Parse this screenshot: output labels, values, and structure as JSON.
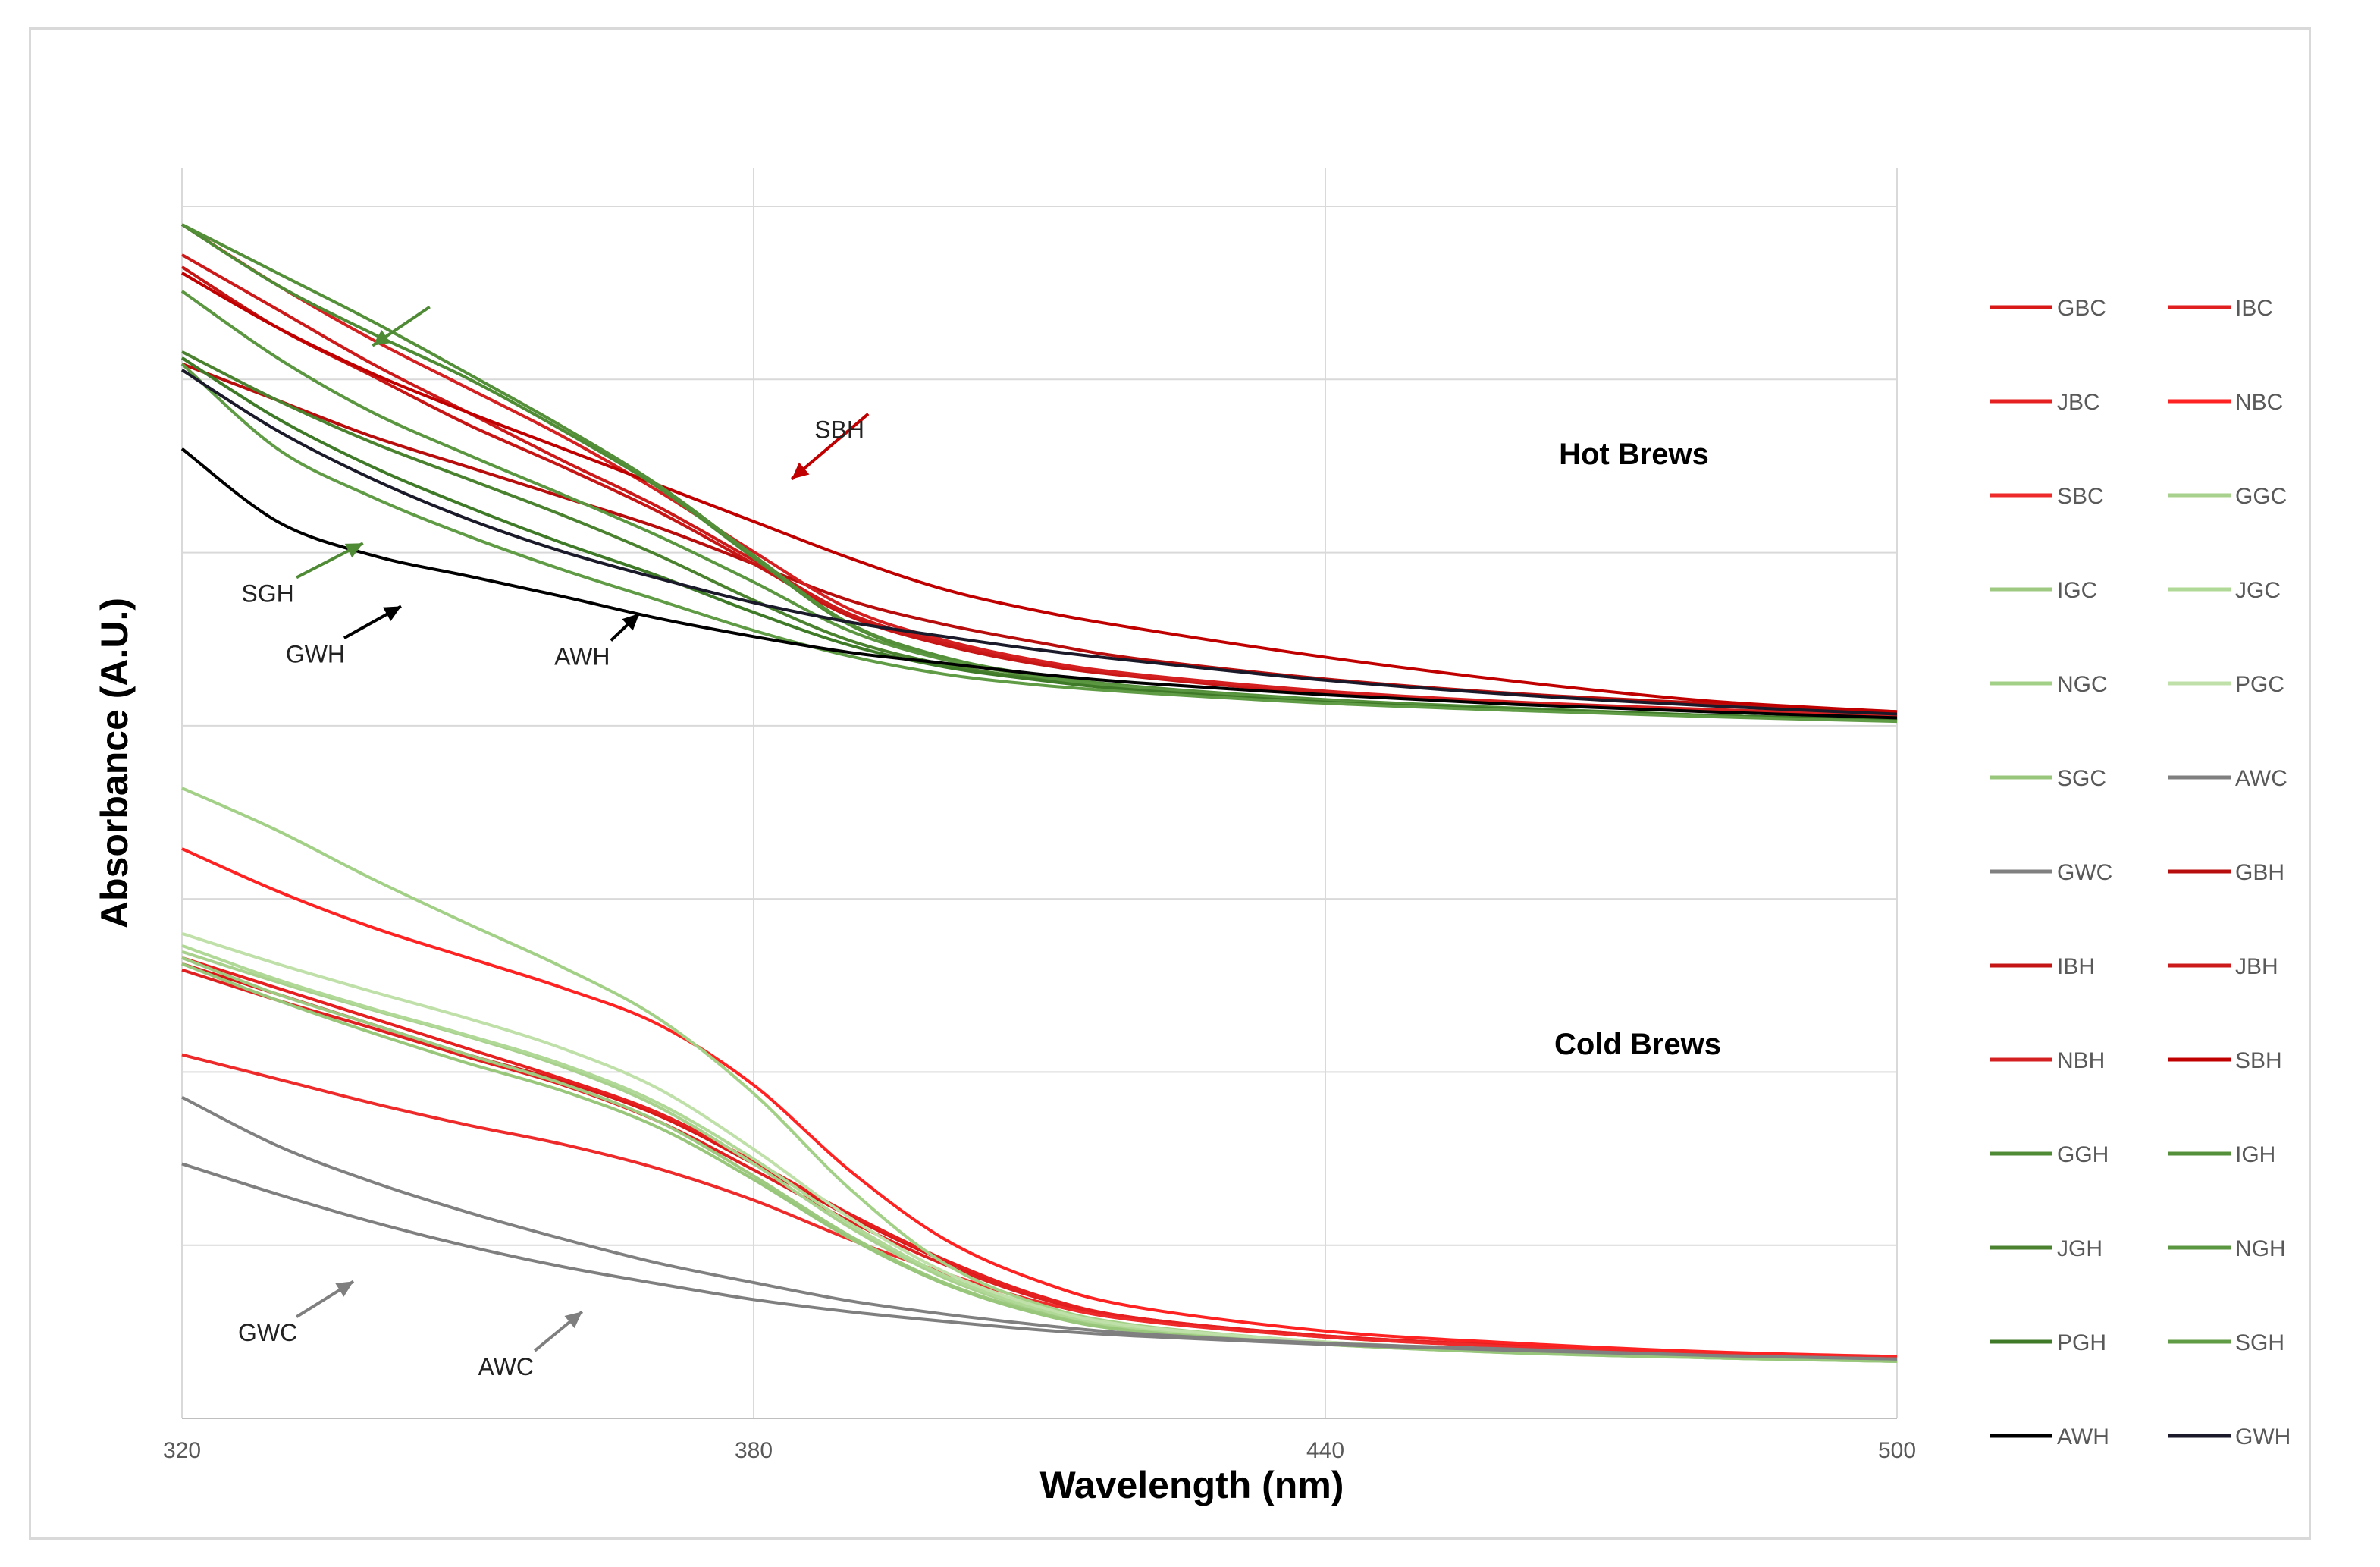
{
  "chart_data": {
    "type": "line",
    "title": "",
    "xlabel": "Wavelength (nm)",
    "ylabel": "Absorbance (A.U.)",
    "xlim": [
      320,
      500
    ],
    "ylim": [
      0,
      1
    ],
    "x_ticks": [
      "320",
      "380",
      "440",
      "500"
    ],
    "y_ticks": "hidden (no numeric labels shown)",
    "grid": true,
    "legend_position": "right",
    "panel_labels": [
      "Hot Brews",
      "Cold Brews"
    ],
    "colors": {
      "black_hot": "#000000",
      "black_cold": "#e02020",
      "green_hot": "#4f8a35",
      "green_cold": "#a6d38a",
      "white_hot": "#000000",
      "white_cold": "#7f7f7f",
      "arrow_red": "#c00000",
      "arrow_green": "#4f8a35",
      "grid": "#d9d9d9"
    },
    "x": [
      320,
      330,
      340,
      350,
      360,
      370,
      380,
      390,
      400,
      410,
      420,
      440,
      460,
      480,
      500
    ],
    "series": [
      {
        "name": "GBC",
        "group": "cold",
        "color": "#d91818",
        "values": [
          0.375,
          0.35,
          0.325,
          0.3,
          0.278,
          0.25,
          0.21,
          0.167,
          0.13,
          0.1,
          0.083,
          0.068,
          0.06,
          0.054,
          0.05
        ]
      },
      {
        "name": "IBC",
        "group": "cold",
        "color": "#e02020",
        "values": [
          0.37,
          0.345,
          0.322,
          0.298,
          0.275,
          0.245,
          0.205,
          0.163,
          0.127,
          0.099,
          0.082,
          0.067,
          0.059,
          0.053,
          0.05
        ]
      },
      {
        "name": "JBC",
        "group": "cold",
        "color": "#e62020",
        "values": [
          0.38,
          0.355,
          0.33,
          0.305,
          0.28,
          0.252,
          0.212,
          0.169,
          0.131,
          0.101,
          0.083,
          0.068,
          0.06,
          0.054,
          0.05
        ]
      },
      {
        "name": "NBC",
        "group": "cold",
        "color": "#ff2222",
        "values": [
          0.47,
          0.435,
          0.405,
          0.38,
          0.355,
          0.325,
          0.275,
          0.205,
          0.148,
          0.113,
          0.092,
          0.072,
          0.062,
          0.055,
          0.051
        ]
      },
      {
        "name": "SBC",
        "group": "cold",
        "color": "#ee2a2a",
        "values": [
          0.3,
          0.28,
          0.26,
          0.242,
          0.226,
          0.206,
          0.18,
          0.148,
          0.12,
          0.096,
          0.081,
          0.067,
          0.059,
          0.053,
          0.05
        ]
      },
      {
        "name": "GGC",
        "group": "cold",
        "color": "#a9d18e",
        "values": [
          0.385,
          0.36,
          0.337,
          0.315,
          0.29,
          0.257,
          0.21,
          0.158,
          0.116,
          0.089,
          0.074,
          0.062,
          0.055,
          0.05,
          0.047
        ]
      },
      {
        "name": "IGC",
        "group": "cold",
        "color": "#9dca80",
        "values": [
          0.38,
          0.35,
          0.325,
          0.3,
          0.276,
          0.245,
          0.2,
          0.151,
          0.112,
          0.087,
          0.072,
          0.061,
          0.054,
          0.05,
          0.047
        ]
      },
      {
        "name": "JGC",
        "group": "cold",
        "color": "#b0d896",
        "values": [
          0.39,
          0.362,
          0.338,
          0.316,
          0.292,
          0.26,
          0.214,
          0.161,
          0.118,
          0.09,
          0.075,
          0.062,
          0.055,
          0.05,
          0.047
        ]
      },
      {
        "name": "NGC",
        "group": "cold",
        "color": "#a3d087",
        "values": [
          0.52,
          0.485,
          0.445,
          0.408,
          0.372,
          0.33,
          0.268,
          0.19,
          0.128,
          0.094,
          0.077,
          0.063,
          0.056,
          0.051,
          0.047
        ]
      },
      {
        "name": "PGC",
        "group": "cold",
        "color": "#bfe0a8",
        "values": [
          0.4,
          0.375,
          0.352,
          0.33,
          0.305,
          0.272,
          0.222,
          0.166,
          0.121,
          0.092,
          0.076,
          0.063,
          0.055,
          0.05,
          0.047
        ]
      },
      {
        "name": "SGC",
        "group": "cold",
        "color": "#98c77b",
        "values": [
          0.375,
          0.345,
          0.318,
          0.293,
          0.27,
          0.24,
          0.197,
          0.149,
          0.111,
          0.086,
          0.072,
          0.061,
          0.054,
          0.05,
          0.047
        ]
      },
      {
        "name": "AWC",
        "group": "cold",
        "color": "#7f7f7f",
        "values": [
          0.21,
          0.185,
          0.162,
          0.142,
          0.125,
          0.111,
          0.098,
          0.088,
          0.08,
          0.073,
          0.068,
          0.061,
          0.056,
          0.052,
          0.049
        ]
      },
      {
        "name": "GWC",
        "group": "cold",
        "color": "#808080",
        "values": [
          0.265,
          0.225,
          0.195,
          0.17,
          0.148,
          0.128,
          0.112,
          0.097,
          0.086,
          0.077,
          0.07,
          0.062,
          0.057,
          0.052,
          0.049
        ]
      },
      {
        "name": "GBH",
        "group": "hot",
        "color": "#b80d0d",
        "values": [
          0.87,
          0.84,
          0.81,
          0.785,
          0.76,
          0.735,
          0.705,
          0.675,
          0.655,
          0.64,
          0.627,
          0.61,
          0.598,
          0.59,
          0.583
        ]
      },
      {
        "name": "IBH",
        "group": "hot",
        "color": "#c61515",
        "values": [
          0.95,
          0.9,
          0.86,
          0.82,
          0.785,
          0.748,
          0.705,
          0.662,
          0.638,
          0.622,
          0.612,
          0.598,
          0.59,
          0.584,
          0.579
        ]
      },
      {
        "name": "JBH",
        "group": "hot",
        "color": "#cc1a1a",
        "values": [
          0.96,
          0.915,
          0.87,
          0.83,
          0.79,
          0.752,
          0.708,
          0.664,
          0.64,
          0.624,
          0.613,
          0.599,
          0.59,
          0.584,
          0.579
        ]
      },
      {
        "name": "NBH",
        "group": "hot",
        "color": "#d42020",
        "values": [
          0.985,
          0.935,
          0.89,
          0.85,
          0.81,
          0.765,
          0.715,
          0.668,
          0.642,
          0.625,
          0.614,
          0.6,
          0.591,
          0.585,
          0.58
        ]
      },
      {
        "name": "SBH",
        "group": "hot",
        "color": "#c00000",
        "values": [
          0.945,
          0.9,
          0.862,
          0.83,
          0.8,
          0.77,
          0.74,
          0.71,
          0.684,
          0.666,
          0.652,
          0.628,
          0.608,
          0.592,
          0.583
        ]
      },
      {
        "name": "GGH",
        "group": "hot",
        "color": "#4f8a35",
        "values": [
          0.985,
          0.935,
          0.895,
          0.858,
          0.815,
          0.768,
          0.71,
          0.655,
          0.627,
          0.612,
          0.603,
          0.592,
          0.585,
          0.58,
          0.576
        ]
      },
      {
        "name": "IGH",
        "group": "hot",
        "color": "#548f39",
        "values": [
          0.985,
          0.945,
          0.905,
          0.862,
          0.818,
          0.77,
          0.712,
          0.656,
          0.628,
          0.613,
          0.604,
          0.593,
          0.586,
          0.58,
          0.576
        ]
      },
      {
        "name": "JGH",
        "group": "hot",
        "color": "#4a8230",
        "values": [
          0.88,
          0.84,
          0.805,
          0.775,
          0.745,
          0.712,
          0.675,
          0.642,
          0.622,
          0.61,
          0.602,
          0.592,
          0.585,
          0.58,
          0.576
        ]
      },
      {
        "name": "NGH",
        "group": "hot",
        "color": "#5b9640",
        "values": [
          0.93,
          0.875,
          0.83,
          0.795,
          0.762,
          0.728,
          0.69,
          0.65,
          0.626,
          0.612,
          0.603,
          0.592,
          0.585,
          0.58,
          0.576
        ]
      },
      {
        "name": "PGH",
        "group": "hot",
        "color": "#3f7a28",
        "values": [
          0.875,
          0.825,
          0.785,
          0.752,
          0.722,
          0.695,
          0.665,
          0.638,
          0.62,
          0.609,
          0.601,
          0.591,
          0.585,
          0.58,
          0.576
        ]
      },
      {
        "name": "SGH",
        "group": "hot",
        "color": "#609b45",
        "values": [
          0.87,
          0.8,
          0.76,
          0.728,
          0.7,
          0.675,
          0.65,
          0.629,
          0.614,
          0.605,
          0.599,
          0.59,
          0.584,
          0.579,
          0.575
        ]
      },
      {
        "name": "AWH",
        "group": "hot",
        "color": "#000000",
        "values": [
          0.8,
          0.74,
          0.712,
          0.695,
          0.678,
          0.66,
          0.645,
          0.632,
          0.623,
          0.614,
          0.607,
          0.597,
          0.589,
          0.583,
          0.578
        ]
      },
      {
        "name": "GWH",
        "group": "hot",
        "color": "#1a1a2a",
        "values": [
          0.865,
          0.815,
          0.775,
          0.742,
          0.715,
          0.693,
          0.673,
          0.657,
          0.645,
          0.634,
          0.625,
          0.609,
          0.597,
          0.588,
          0.581
        ]
      }
    ],
    "annotations": [
      {
        "text": "SBH",
        "x": 389,
        "y": 0.815,
        "arrow_to_x": 384,
        "arrow_to_y": 0.775,
        "color": "#c00000"
      },
      {
        "text": "",
        "x": 346,
        "y": 0.917,
        "arrow_to_x": 340,
        "arrow_to_y": 0.885,
        "color": "#4f8a35"
      },
      {
        "text": "SGH",
        "x": 329,
        "y": 0.68,
        "arrow_to_x": 339,
        "arrow_to_y": 0.722,
        "color": "#4f8a35"
      },
      {
        "text": "GWH",
        "x": 334,
        "y": 0.63,
        "arrow_to_x": 343,
        "arrow_to_y": 0.67,
        "color": "#000000"
      },
      {
        "text": "AWH",
        "x": 362,
        "y": 0.628,
        "arrow_to_x": 368,
        "arrow_to_y": 0.664,
        "color": "#000000"
      },
      {
        "text": "GWC",
        "x": 329,
        "y": 0.07,
        "arrow_to_x": 338,
        "arrow_to_y": 0.113,
        "color": "#7f7f7f"
      },
      {
        "text": "AWC",
        "x": 354,
        "y": 0.042,
        "arrow_to_x": 362,
        "arrow_to_y": 0.088,
        "color": "#7f7f7f"
      }
    ]
  }
}
